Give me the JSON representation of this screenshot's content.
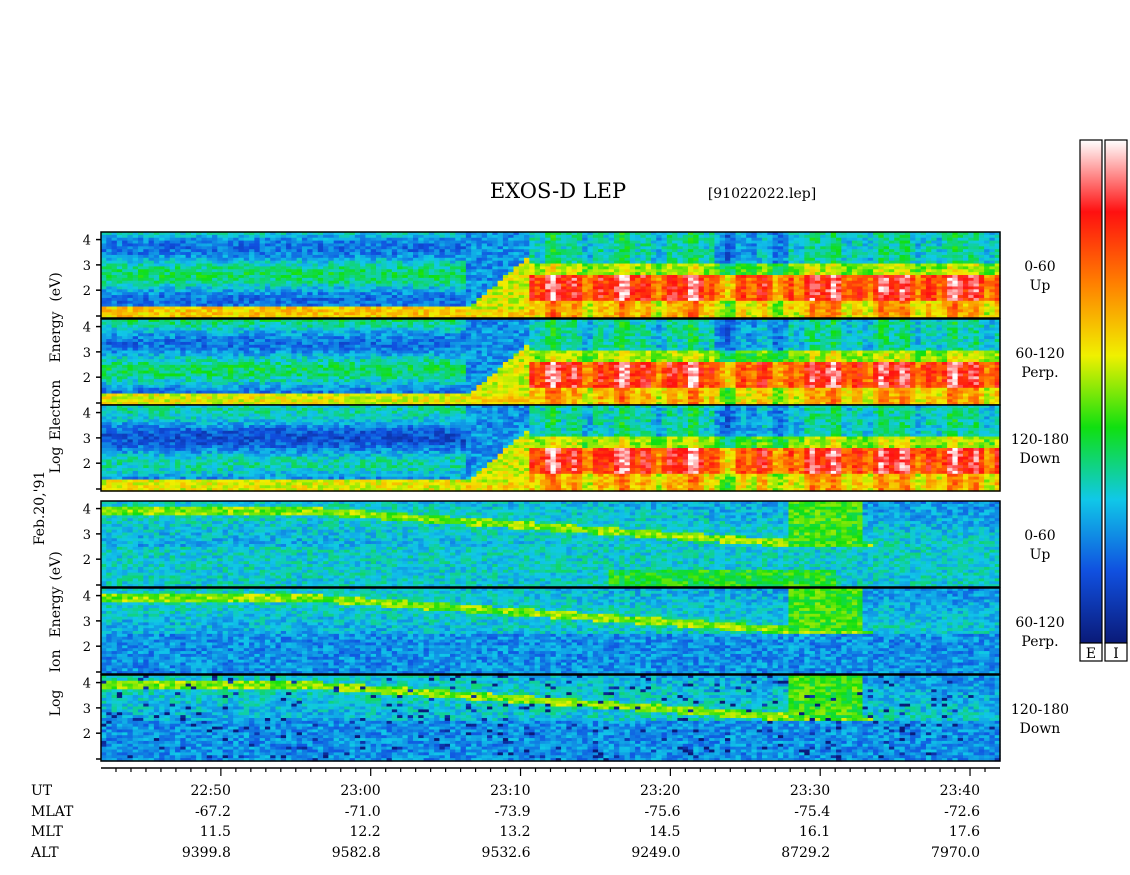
{
  "chart_data": {
    "type": "heatmap",
    "title": "EXOS-D LEP",
    "file_label": "[91022022.lep]",
    "date_label": "Feb.20,'91",
    "groups": [
      {
        "species": "electron",
        "ylabel": "Log Electron Energy (eV)",
        "ylabel_words": [
          "Log",
          "Electron",
          "Energy",
          "(eV)"
        ],
        "ylim": [
          1,
          4
        ],
        "yticks": [
          "4",
          "3",
          "2"
        ],
        "panels": [
          {
            "pitch": "0-60",
            "dir": "Up"
          },
          {
            "pitch": "60-120",
            "dir": "Perp."
          },
          {
            "pitch": "120-180",
            "dir": "Down"
          }
        ]
      },
      {
        "species": "ion",
        "ylabel": "Log Ion Energy (eV)",
        "ylabel_words": [
          "Log",
          "Ion",
          "Energy",
          "(eV)"
        ],
        "ylim": [
          1,
          4
        ],
        "yticks": [
          "4",
          "3",
          "2"
        ],
        "panels": [
          {
            "pitch": "0-60",
            "dir": "Up"
          },
          {
            "pitch": "60-120",
            "dir": "Perp."
          },
          {
            "pitch": "120-180",
            "dir": "Down"
          }
        ]
      }
    ],
    "xlim_minutes": [
      1362,
      1422
    ],
    "x_tick_minutes": [
      1370,
      1380,
      1390,
      1400,
      1410,
      1420
    ],
    "ephemeris": {
      "rows": [
        {
          "label": "UT",
          "values": [
            "22:50",
            "23:00",
            "23:10",
            "23:20",
            "23:30",
            "23:40"
          ]
        },
        {
          "label": "MLAT",
          "values": [
            "-67.2",
            "-71.0",
            "-73.9",
            "-75.6",
            "-75.4",
            "-72.6"
          ]
        },
        {
          "label": "MLT",
          "values": [
            "11.5",
            "12.2",
            "13.2",
            "14.5",
            "16.1",
            "17.6"
          ]
        },
        {
          "label": "ALT",
          "values": [
            "9399.8",
            "9582.8",
            "9532.6",
            "9249.0",
            "8729.2",
            "7970.0"
          ]
        }
      ]
    },
    "colorbars": [
      {
        "label": "E"
      },
      {
        "label": "I"
      }
    ],
    "colormap": [
      "#0a1a78",
      "#1050e0",
      "#10c8e8",
      "#10e010",
      "#f0f000",
      "#ff8000",
      "#ff1010",
      "#ffffff"
    ]
  }
}
